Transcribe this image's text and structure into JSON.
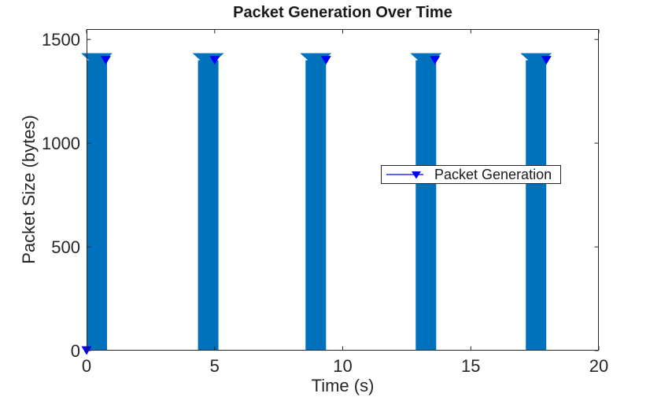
{
  "figure": {
    "background": "#FFFFFF"
  },
  "chart_data": {
    "type": "bar",
    "title": "Packet Generation Over Time",
    "xlabel": "Time (s)",
    "ylabel": "Packet Size (bytes)",
    "xlim": [
      0,
      20
    ],
    "ylim": [
      0,
      1550
    ],
    "xticks": [
      0,
      5,
      10,
      15,
      20
    ],
    "yticks": [
      0,
      500,
      1000,
      1500
    ],
    "grid": false,
    "box": true,
    "axis_color": "#262626",
    "tick_label_color": "#262626",
    "bar_series": {
      "name": "packet-bars",
      "color": "#0072BD",
      "bar_width": 0.8,
      "centers": [
        0.4,
        4.75,
        8.95,
        13.25,
        17.55
      ],
      "heights": [
        1400,
        1400,
        1400,
        1400,
        1400
      ],
      "top_marker_shape": "triangle-down",
      "top_marker_color": "#0072BD"
    },
    "marker_series": {
      "name": "Packet Generation",
      "color": "#0000FF",
      "marker": "triangle-down",
      "points": [
        [
          0,
          0
        ],
        [
          0.75,
          1400
        ],
        [
          5.0,
          1400
        ],
        [
          9.35,
          1400
        ],
        [
          13.6,
          1400
        ],
        [
          17.95,
          1400
        ]
      ]
    },
    "legend": {
      "label": "Packet Generation",
      "position": "center-right",
      "border_color": "#262626",
      "background": "#FFFFFF",
      "line_color": "#0000FF",
      "marker": "filled-triangle-down",
      "marker_color": "#0000FF"
    }
  }
}
